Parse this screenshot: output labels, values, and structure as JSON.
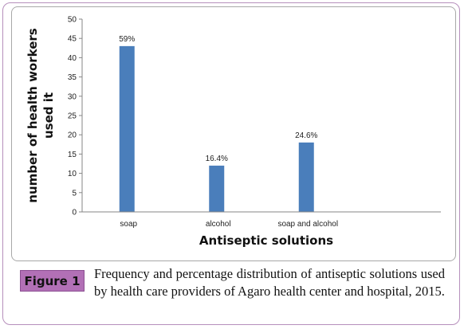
{
  "figure": {
    "badge": "Figure 1",
    "caption": "Frequency and percentage distribution of antiseptic solutions used by health care providers of Agaro health center and hospital, 2015.",
    "accent_color": "#b270b6",
    "border_color": "#b68fbc"
  },
  "chart_data": {
    "type": "bar",
    "categories": [
      "soap",
      "alcohol",
      "soap and alcohol"
    ],
    "values": [
      43,
      12,
      18
    ],
    "data_labels": [
      "59%",
      "16.4%",
      "24.6%"
    ],
    "xlabel": "Antiseptic solutions",
    "ylabel_lines": [
      "number of health workers",
      "used it"
    ],
    "ylim": [
      0,
      50
    ],
    "yticks": [
      0,
      5,
      10,
      15,
      20,
      25,
      30,
      35,
      40,
      45,
      50
    ],
    "bar_color": "#4a7ebb",
    "grid": false,
    "legend": "none"
  }
}
